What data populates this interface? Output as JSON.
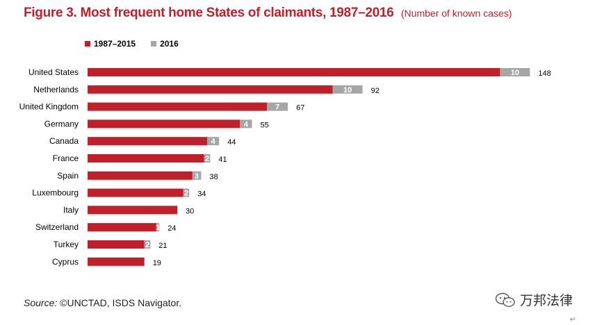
{
  "title": "Figure 3. Most frequent home States of claimants, 1987–2016",
  "subtitle": "(Number of known cases)",
  "colors": {
    "series1": "#c0202a",
    "series2": "#a6a6a6",
    "title": "#c0202a"
  },
  "source_label": "Source:",
  "source_text": "©UNCTAD, ISDS Navigator.",
  "watermark_text": "万邦法律",
  "corner_mark": "↵",
  "chart_data": {
    "type": "bar",
    "orientation": "horizontal",
    "stacked": true,
    "categories": [
      "United States",
      "Netherlands",
      "United Kingdom",
      "Germany",
      "Canada",
      "France",
      "Spain",
      "Luxembourg",
      "Italy",
      "Switzerland",
      "Turkey",
      "Cyprus"
    ],
    "series": [
      {
        "name": "1987–2015",
        "values": [
          138,
          82,
          60,
          51,
          40,
          39,
          35,
          32,
          30,
          23,
          19,
          19
        ],
        "color": "#c0202a"
      },
      {
        "name": "2016",
        "values": [
          10,
          10,
          7,
          4,
          4,
          2,
          3,
          2,
          null,
          1,
          2,
          null
        ],
        "color": "#a6a6a6"
      }
    ],
    "segment_labels_2016": [
      "10",
      "10",
      "7",
      "4",
      "4",
      "2",
      "3",
      "2",
      "",
      "1",
      "2",
      ""
    ],
    "totals": [
      148,
      92,
      67,
      55,
      44,
      41,
      38,
      34,
      30,
      24,
      21,
      19
    ],
    "xlim": [
      0,
      160
    ],
    "legend_position": "top-left",
    "grid": false
  }
}
